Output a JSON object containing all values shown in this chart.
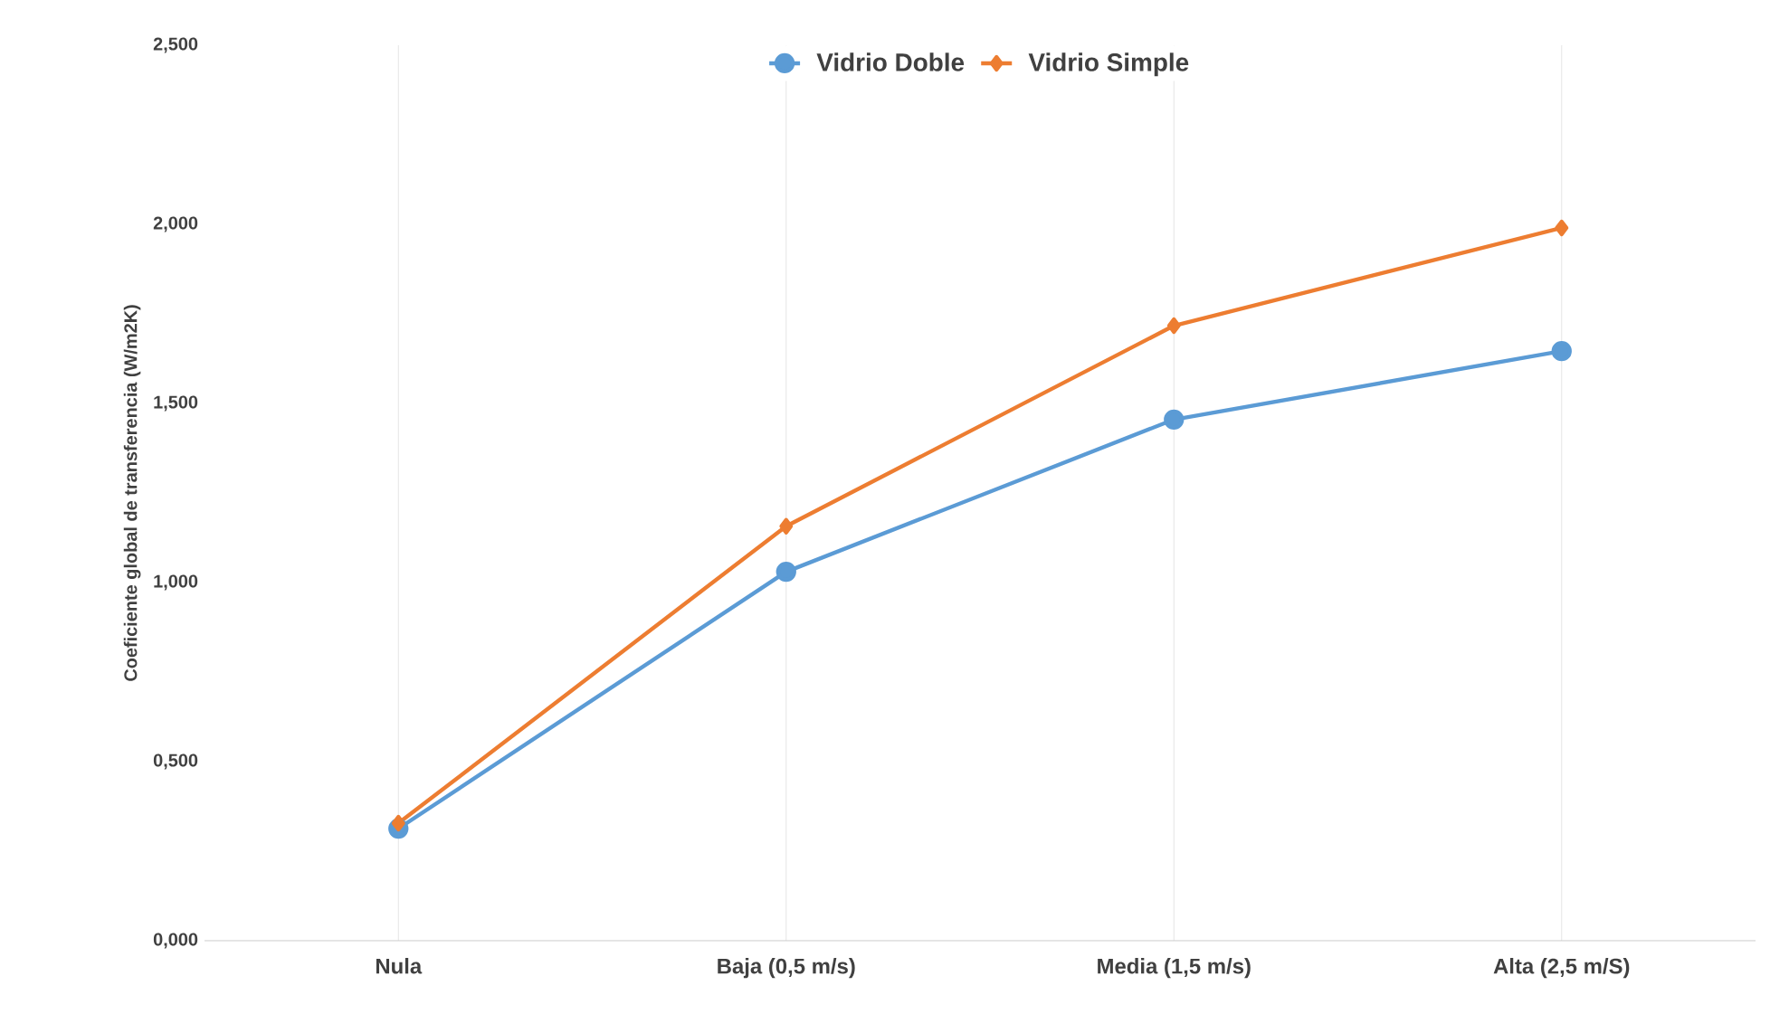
{
  "chart_data": {
    "type": "line",
    "ylabel": "Coeficiente global de transferencia (W/m2K)",
    "categories": [
      "Nula",
      "Baja (0,5 m/s)",
      "Media (1,5 m/s)",
      "Alta (2,5 m/S)"
    ],
    "series": [
      {
        "name": "Vidrio Doble",
        "color": "#5b9bd5",
        "marker": "circle",
        "values": [
          0.313,
          1.03,
          1.455,
          1.646
        ]
      },
      {
        "name": "Vidrio Simple",
        "color": "#ed7d31",
        "marker": "diamond",
        "values": [
          0.328,
          1.157,
          1.717,
          1.99
        ]
      }
    ],
    "ylim": [
      0,
      2.5
    ],
    "yticks": [
      {
        "value": 0,
        "label": "0,000"
      },
      {
        "value": 0.5,
        "label": "0,500"
      },
      {
        "value": 1,
        "label": "1,000"
      },
      {
        "value": 1.5,
        "label": "1,500"
      },
      {
        "value": 2,
        "label": "2,000"
      },
      {
        "value": 2.5,
        "label": "2,500"
      }
    ],
    "grid": "x",
    "legend": "top",
    "line_style": "solid"
  }
}
